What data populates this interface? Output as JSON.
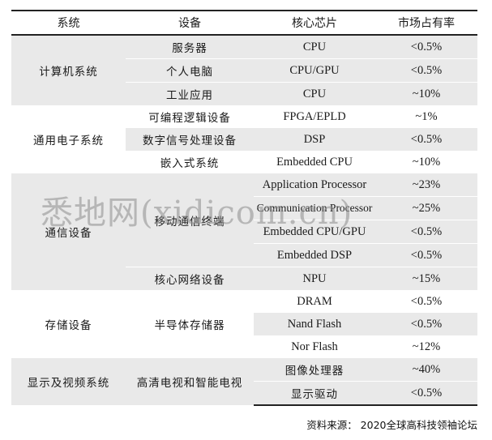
{
  "headers": [
    "系统",
    "设备",
    "核心芯片",
    "市场占有率"
  ],
  "rows": [
    {
      "system": "计算机系统",
      "device": "服务器",
      "chip": "CPU",
      "share": "<0.5%"
    },
    {
      "system": "",
      "device": "个人电脑",
      "chip": "CPU/GPU",
      "share": "<0.5%"
    },
    {
      "system": "",
      "device": "工业应用",
      "chip": "CPU",
      "share": "~10%"
    },
    {
      "system": "通用电子系统",
      "device": "可编程逻辑设备",
      "chip": "FPGA/EPLD",
      "share": "~1%"
    },
    {
      "system": "",
      "device": "数字信号处理设备",
      "chip": "DSP",
      "share": "<0.5%"
    },
    {
      "system": "",
      "device": "嵌入式系统",
      "chip": "Embedded CPU",
      "share": "~10%"
    },
    {
      "system": "通信设备",
      "device": "移动通信终端",
      "chip": "Application Processor",
      "share": "~23%"
    },
    {
      "system": "",
      "device": "",
      "chip": "Communication Processor",
      "share": "~25%"
    },
    {
      "system": "",
      "device": "",
      "chip": "Embedded CPU/GPU",
      "share": "<0.5%"
    },
    {
      "system": "",
      "device": "",
      "chip": "Embedded DSP",
      "share": "<0.5%"
    },
    {
      "system": "",
      "device": "核心网络设备",
      "chip": "NPU",
      "share": "~15%"
    },
    {
      "system": "存储设备",
      "device": "半导体存储器",
      "chip": "DRAM",
      "share": "<0.5%"
    },
    {
      "system": "",
      "device": "",
      "chip": "Nand Flash",
      "share": "<0.5%"
    },
    {
      "system": "",
      "device": "",
      "chip": "Nor Flash",
      "share": "~12%"
    },
    {
      "system": "显示及视频系统",
      "device": "高清电视和智能电视",
      "chip": "图像处理器",
      "share": "~40%"
    },
    {
      "system": "",
      "device": "",
      "chip": "显示驱动",
      "share": "<0.5%"
    }
  ],
  "source": "资料来源： 2020全球高科技领袖论坛",
  "watermark": "悉地网(xidicom.cn)",
  "colors": {
    "band": "#e9e9e9",
    "rule": "#222222",
    "watermark": "#8c8c8c"
  }
}
